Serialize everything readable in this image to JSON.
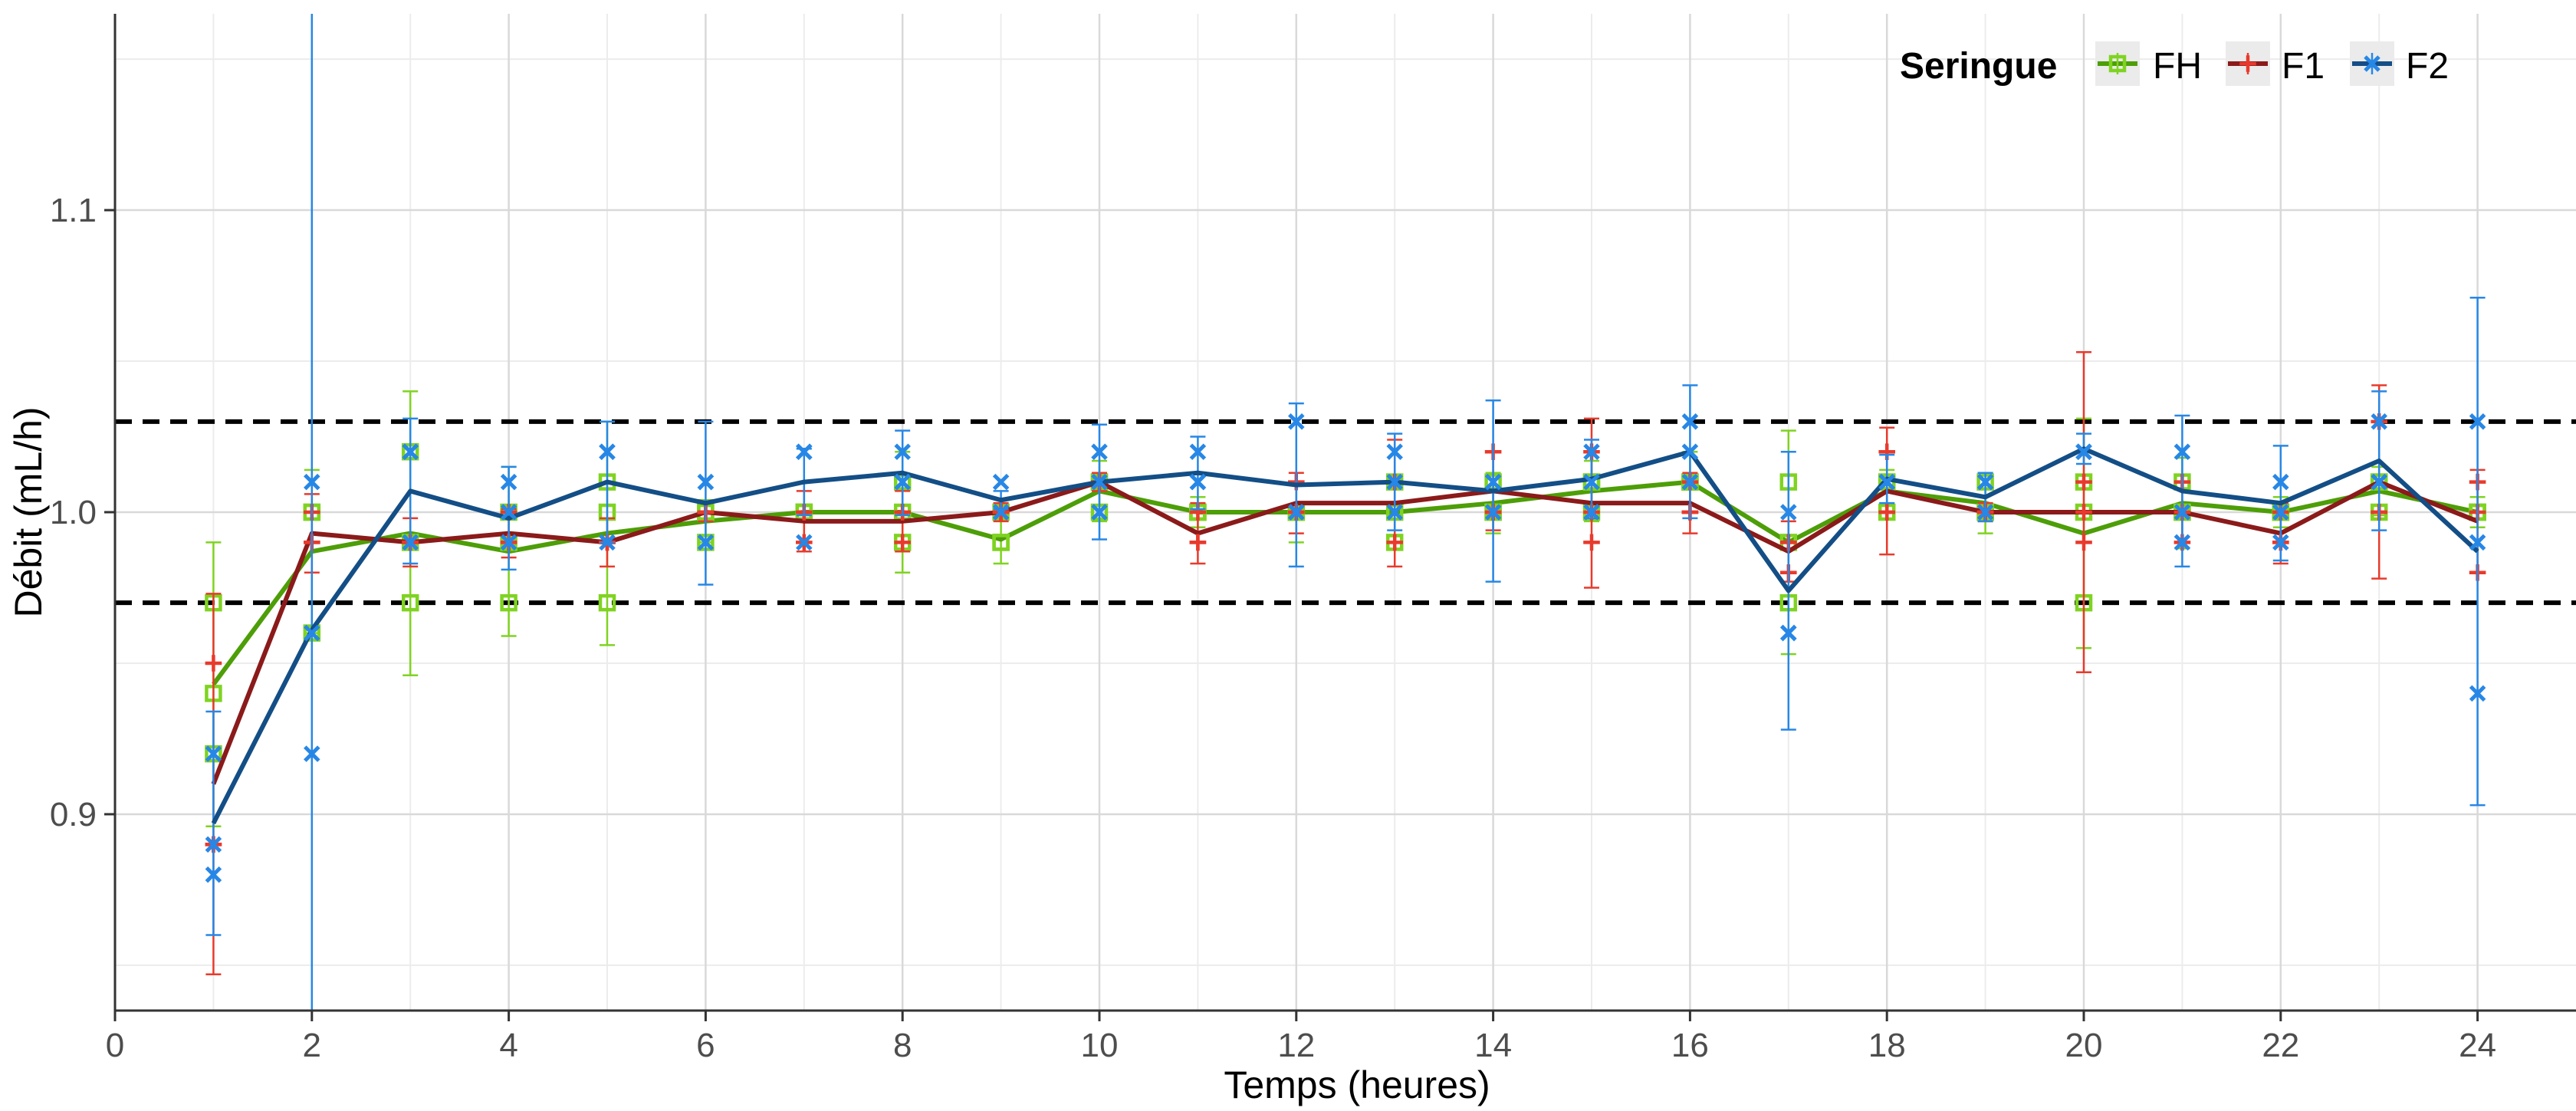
{
  "chart_data": {
    "type": "line",
    "xlabel": "Temps (heures)",
    "ylabel": "Débit (mL/h)",
    "xlim": [
      0,
      25
    ],
    "ylim": [
      0.835,
      1.165
    ],
    "x_ticks": [
      "0",
      "2",
      "4",
      "6",
      "8",
      "10",
      "12",
      "14",
      "16",
      "18",
      "20",
      "22",
      "24"
    ],
    "y_ticks": [
      "0.9",
      "1.0",
      "1.1"
    ],
    "reference_lines": [
      1.03,
      0.97
    ],
    "grid": true,
    "legend": {
      "title": "Seringue",
      "position": "top-right"
    },
    "x": [
      1,
      2,
      3,
      4,
      5,
      6,
      7,
      8,
      9,
      10,
      11,
      12,
      13,
      14,
      15,
      16,
      17,
      18,
      19,
      20,
      21,
      22,
      23,
      24
    ],
    "series": [
      {
        "name": "FH",
        "color": "#4d9e07",
        "point_color": "#7fd321",
        "marker": "square",
        "mean": [
          0.943,
          0.987,
          0.993,
          0.987,
          0.993,
          0.997,
          1.0,
          1.0,
          0.991,
          1.007,
          1.0,
          1.0,
          1.0,
          1.003,
          1.007,
          1.01,
          0.99,
          1.007,
          1.003,
          0.993,
          1.003,
          1.0,
          1.007,
          1.0
        ],
        "sd": [
          0.047,
          0.027,
          0.047,
          0.028,
          0.037,
          0.007,
          0.01,
          0.02,
          0.008,
          0.01,
          0.005,
          0.01,
          0.008,
          0.01,
          0.01,
          0.01,
          0.037,
          0.007,
          0.01,
          0.038,
          0.015,
          0.005,
          0.008,
          0.005
        ],
        "points": [
          [
            0.94,
            0.92,
            0.97
          ],
          [
            0.96,
            1.0,
            1.0
          ],
          [
            0.97,
            0.99,
            1.02
          ],
          [
            0.97,
            0.99,
            1.0
          ],
          [
            0.97,
            1.0,
            1.01
          ],
          [
            0.99,
            1.0,
            1.0
          ],
          [
            1.0,
            1.0,
            1.0
          ],
          [
            0.99,
            1.01,
            1.0
          ],
          [
            0.99,
            1.0,
            0.99
          ],
          [
            1.01,
            1.0,
            1.01
          ],
          [
            1.0,
            1.0,
            1.0
          ],
          [
            1.0,
            1.0,
            1.0
          ],
          [
            0.99,
            1.01,
            1.0
          ],
          [
            1.0,
            1.01,
            1.0
          ],
          [
            1.0,
            1.01,
            1.01
          ],
          [
            1.01,
            1.01,
            1.01
          ],
          [
            0.97,
            0.99,
            1.01
          ],
          [
            1.0,
            1.01,
            1.01
          ],
          [
            1.0,
            1.0,
            1.01
          ],
          [
            0.97,
            1.01,
            1.0
          ],
          [
            1.0,
            1.01,
            1.0
          ],
          [
            1.0,
            1.0,
            1.0
          ],
          [
            1.0,
            1.01,
            1.01
          ],
          [
            1.0,
            1.0,
            1.0
          ]
        ]
      },
      {
        "name": "F1",
        "color": "#8b1a1a",
        "point_color": "#e83a2c",
        "marker": "plus",
        "mean": [
          0.91,
          0.993,
          0.99,
          0.993,
          0.99,
          1.0,
          0.997,
          0.997,
          1.0,
          1.01,
          0.993,
          1.003,
          1.003,
          1.007,
          1.003,
          1.003,
          0.987,
          1.007,
          1.0,
          1.0,
          1.0,
          0.993,
          1.01,
          0.997
        ],
        "sd": [
          0.063,
          0.013,
          0.008,
          0.008,
          0.008,
          0.003,
          0.01,
          0.01,
          0.003,
          0.003,
          0.01,
          0.01,
          0.021,
          0.013,
          0.028,
          0.01,
          0.01,
          0.021,
          0.003,
          0.053,
          0.01,
          0.01,
          0.032,
          0.017
        ],
        "points": [
          [
            0.95,
            0.89,
            0.89
          ],
          [
            1.0,
            0.99,
            0.99
          ],
          [
            0.99,
            0.99,
            0.99
          ],
          [
            0.99,
            1.0,
            0.99
          ],
          [
            0.99,
            0.99,
            0.99
          ],
          [
            1.0,
            1.0,
            1.0
          ],
          [
            0.99,
            1.0,
            1.0
          ],
          [
            0.99,
            1.0,
            1.0
          ],
          [
            1.0,
            1.0,
            1.0
          ],
          [
            1.01,
            1.01,
            1.01
          ],
          [
            0.99,
            1.0,
            0.99
          ],
          [
            1.01,
            1.0,
            1.0
          ],
          [
            0.99,
            1.01,
            1.01
          ],
          [
            1.02,
            1.0,
            1.0
          ],
          [
            1.02,
            0.99,
            1.0
          ],
          [
            1.0,
            1.01,
            1.0
          ],
          [
            0.99,
            0.99,
            0.98
          ],
          [
            1.02,
            1.0,
            1.0
          ],
          [
            1.0,
            1.0,
            1.0
          ],
          [
            1.01,
            0.99,
            1.0
          ],
          [
            1.01,
            0.99,
            1.0
          ],
          [
            0.99,
            1.0,
            0.99
          ],
          [
            1.03,
            1.0,
            1.0
          ],
          [
            0.98,
            1.0,
            1.01
          ]
        ]
      },
      {
        "name": "F2",
        "color": "#134e86",
        "point_color": "#2787e6",
        "marker": "cross",
        "mean": [
          0.897,
          0.961,
          1.007,
          0.998,
          1.01,
          1.003,
          1.01,
          1.013,
          1.004,
          1.01,
          1.013,
          1.009,
          1.01,
          1.007,
          1.011,
          1.02,
          0.974,
          1.011,
          1.005,
          1.021,
          1.007,
          1.003,
          1.017,
          0.987
        ],
        "sd": [
          0.037,
          0.205,
          0.024,
          0.017,
          0.02,
          0.027,
          0.011,
          0.014,
          0.003,
          0.019,
          0.012,
          0.027,
          0.016,
          0.03,
          0.013,
          0.022,
          0.046,
          0.008,
          0.008,
          0.005,
          0.025,
          0.019,
          0.023,
          0.084
        ],
        "points": [
          [
            0.89,
            0.92,
            0.88
          ],
          [
            1.01,
            0.92,
            0.96
          ],
          [
            1.02,
            1.02,
            0.99
          ],
          [
            1.01,
            1.0,
            0.99
          ],
          [
            1.02,
            1.02,
            0.99
          ],
          [
            1.01,
            0.99,
            1.01
          ],
          [
            1.02,
            1.02,
            0.99
          ],
          [
            1.02,
            1.01,
            1.01
          ],
          [
            1.0,
            1.01,
            1.0
          ],
          [
            1.02,
            1.0,
            1.01
          ],
          [
            1.02,
            1.01,
            1.01
          ],
          [
            1.03,
            1.0,
            1.0
          ],
          [
            1.02,
            1.01,
            1.0
          ],
          [
            1.01,
            1.0,
            1.01
          ],
          [
            1.01,
            1.02,
            1.0
          ],
          [
            1.03,
            1.01,
            1.02
          ],
          [
            0.96,
            0.96,
            1.0
          ],
          [
            1.01,
            1.01,
            1.01
          ],
          [
            1.01,
            1.0,
            1.01
          ],
          [
            1.02,
            1.02,
            1.02
          ],
          [
            1.02,
            0.99,
            1.0
          ],
          [
            1.01,
            1.0,
            0.99
          ],
          [
            1.03,
            1.01,
            1.01
          ],
          [
            1.03,
            0.94,
            0.99
          ]
        ]
      }
    ]
  }
}
